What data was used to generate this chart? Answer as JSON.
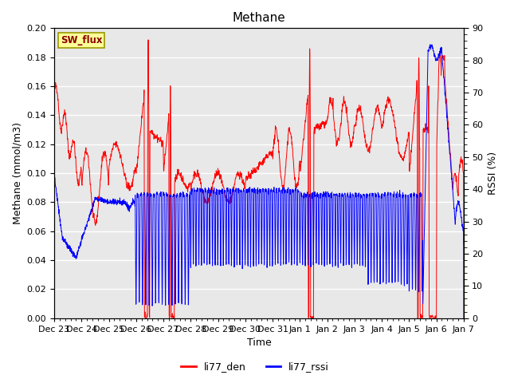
{
  "title": "Methane",
  "ylabel_left": "Methane (mmol/m3)",
  "ylabel_right": "RSSI (%)",
  "xlabel": "Time",
  "ylim_left": [
    0.0,
    0.2
  ],
  "ylim_right": [
    0,
    90
  ],
  "yticks_left": [
    0.0,
    0.02,
    0.04,
    0.06,
    0.08,
    0.1,
    0.12,
    0.14,
    0.16,
    0.18,
    0.2
  ],
  "yticks_right": [
    0,
    10,
    20,
    30,
    40,
    50,
    60,
    70,
    80,
    90
  ],
  "xtick_labels": [
    "Dec 23",
    "Dec 24",
    "Dec 25",
    "Dec 26",
    "Dec 27",
    "Dec 28",
    "Dec 29",
    "Dec 30",
    "Dec 31",
    "Jan 1",
    "Jan 2",
    "Jan 3",
    "Jan 4",
    "Jan 5",
    "Jan 6",
    "Jan 7"
  ],
  "color_red": "#FF0000",
  "color_blue": "#0000FF",
  "background_plot": "#E8E8E8",
  "background_fig": "#FFFFFF",
  "legend_label_red": "li77_den",
  "legend_label_blue": "li77_rssi",
  "inset_label": "SW_flux",
  "inset_bg": "#FFFF99",
  "inset_border": "#999900",
  "grid_color": "#FFFFFF",
  "title_fontsize": 11,
  "label_fontsize": 9,
  "tick_fontsize": 8
}
